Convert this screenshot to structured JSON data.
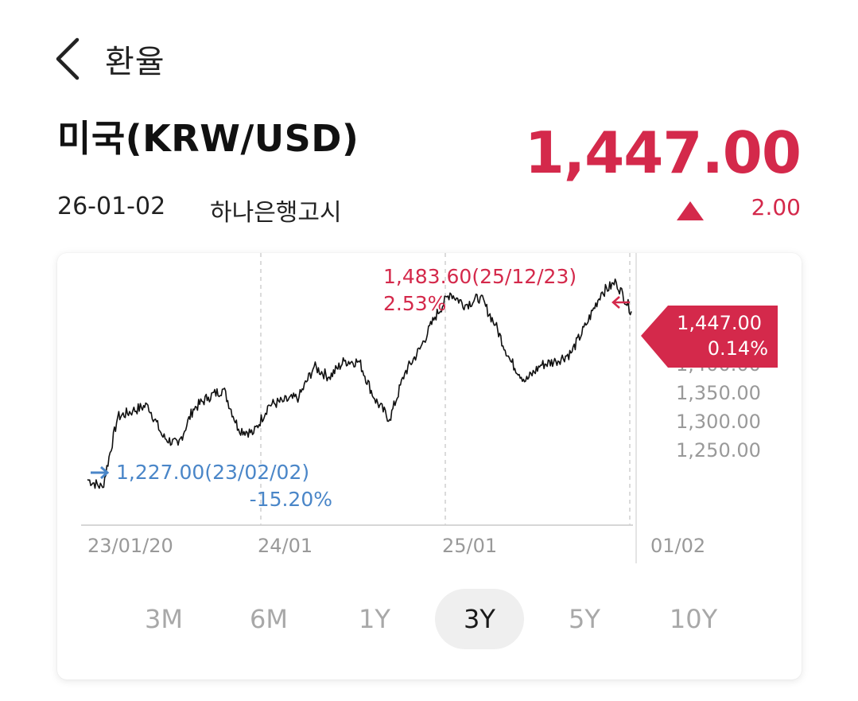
{
  "header": {
    "title": "환율",
    "back_icon": "chevron-left-icon"
  },
  "currency": {
    "name": "미국(KRW/USD)",
    "rate": "1,447.00",
    "date": "26-01-02",
    "source": "하나은행고시",
    "change": "2.00",
    "direction_icon": "triangle-up-icon"
  },
  "colors": {
    "up": "#d4294b",
    "down": "#4a86c8",
    "line": "#111111"
  },
  "chart": {
    "high": {
      "value": "1,483.60(25/12/23)",
      "pct": "2.53%"
    },
    "low": {
      "value": "1,227.00(23/02/02)",
      "pct": "-15.20%"
    },
    "current": {
      "value": "1,447.00",
      "pct": "0.14%"
    },
    "partial_label": "1,400.00",
    "y_labels": [
      "1,350.00",
      "1,300.00",
      "1,250.00"
    ],
    "x_labels": [
      "23/01/20",
      "24/01",
      "25/01",
      "01/02"
    ]
  },
  "chart_data": {
    "type": "line",
    "x": [
      "23/01",
      "23/02",
      "23/03",
      "23/04",
      "23/05",
      "23/06",
      "23/07",
      "23/08",
      "23/09",
      "23/10",
      "23/11",
      "23/12",
      "24/01",
      "24/02",
      "24/03",
      "24/04",
      "24/05",
      "24/06",
      "24/07",
      "24/08",
      "24/09",
      "24/10",
      "24/11",
      "24/12",
      "25/01",
      "25/02",
      "25/03",
      "25/04",
      "25/05",
      "25/06",
      "25/07",
      "25/08",
      "25/09",
      "25/10",
      "25/11",
      "25/12",
      "26/01"
    ],
    "series": [
      {
        "values": [
          1237,
          1227,
          1315,
          1323,
          1330,
          1290,
          1280,
          1325,
          1340,
          1350,
          1300,
          1295,
          1330,
          1335,
          1340,
          1378,
          1365,
          1385,
          1384,
          1338,
          1312,
          1370,
          1400,
          1440,
          1470,
          1455,
          1465,
          1430,
          1385,
          1360,
          1380,
          1385,
          1395,
          1430,
          1470,
          1483.6,
          1447
        ]
      }
    ],
    "y_ticks": [
      1250,
      1300,
      1350,
      1400
    ],
    "ylim": [
      1180,
      1520
    ],
    "grid": "vertical dashed",
    "legend": "none"
  },
  "periods": {
    "active": "3Y",
    "items": [
      {
        "label": "3M",
        "name": "period-tab-3m"
      },
      {
        "label": "6M",
        "name": "period-tab-6m"
      },
      {
        "label": "1Y",
        "name": "period-tab-1y"
      },
      {
        "label": "3Y",
        "name": "period-tab-3y"
      },
      {
        "label": "5Y",
        "name": "period-tab-5y"
      },
      {
        "label": "10Y",
        "name": "period-tab-10y"
      }
    ]
  }
}
